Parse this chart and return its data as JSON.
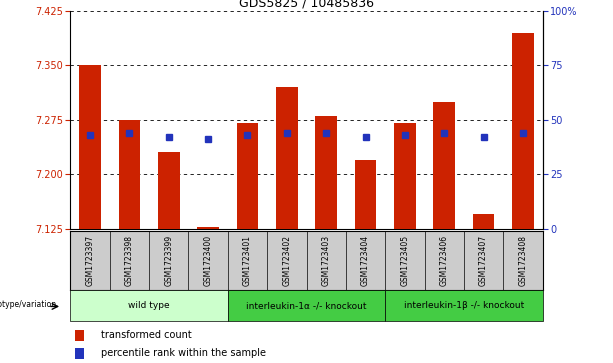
{
  "title": "GDS5825 / 10485836",
  "samples": [
    "GSM1723397",
    "GSM1723398",
    "GSM1723399",
    "GSM1723400",
    "GSM1723401",
    "GSM1723402",
    "GSM1723403",
    "GSM1723404",
    "GSM1723405",
    "GSM1723406",
    "GSM1723407",
    "GSM1723408"
  ],
  "red_values": [
    7.35,
    7.275,
    7.23,
    7.127,
    7.27,
    7.32,
    7.28,
    7.22,
    7.27,
    7.3,
    7.145,
    7.395
  ],
  "blue_values_pct": [
    43,
    44,
    42,
    41,
    43,
    44,
    44,
    42,
    43,
    44,
    42,
    44
  ],
  "ylim_left": [
    7.125,
    7.425
  ],
  "ylim_right": [
    0,
    100
  ],
  "yticks_left": [
    7.125,
    7.2,
    7.275,
    7.35,
    7.425
  ],
  "yticks_right": [
    0,
    25,
    50,
    75,
    100
  ],
  "bar_color": "#cc2200",
  "dot_color": "#2233bb",
  "genotype_groups": [
    {
      "label": "wild type",
      "start": 0,
      "end": 4,
      "color": "#ccffcc"
    },
    {
      "label": "interleukin-1α -/- knockout",
      "start": 4,
      "end": 8,
      "color": "#44cc44"
    },
    {
      "label": "interleukin-1β -/- knockout",
      "start": 8,
      "end": 12,
      "color": "#44cc44"
    }
  ],
  "genotype_label": "genotype/variation",
  "legend_red": "transformed count",
  "legend_blue": "percentile rank within the sample",
  "bar_width": 0.55,
  "base_value": 7.125,
  "background_color": "#ffffff",
  "grid_color": "#000000",
  "tick_label_color_left": "#cc2200",
  "tick_label_color_right": "#2233bb",
  "xtick_bg_color": "#cccccc"
}
